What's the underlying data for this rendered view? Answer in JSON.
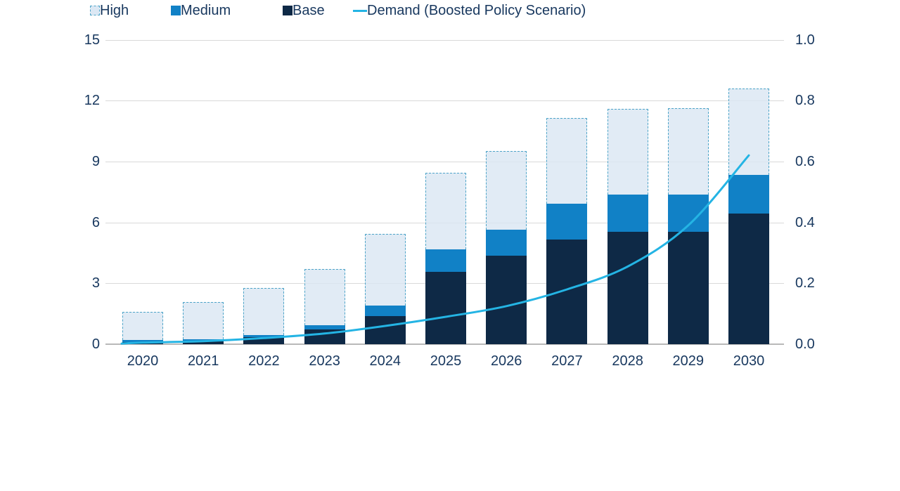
{
  "chart_data": {
    "type": "bar",
    "subtype": "stacked-bars-with-line-combo",
    "title": "",
    "categories": [
      "2020",
      "2021",
      "2022",
      "2023",
      "2024",
      "2025",
      "2026",
      "2027",
      "2028",
      "2029",
      "2030"
    ],
    "series": [
      {
        "name": "Base",
        "type": "bar-stack",
        "axis": "left",
        "color": "#0e2946",
        "values": [
          0.12,
          0.16,
          0.34,
          0.71,
          1.38,
          3.56,
          4.36,
          5.16,
          5.55,
          5.55,
          6.44
        ]
      },
      {
        "name": "Medium",
        "type": "bar-stack",
        "axis": "left",
        "color": "#1181c6",
        "values": [
          0.08,
          0.08,
          0.11,
          0.21,
          0.52,
          1.1,
          1.27,
          1.77,
          1.81,
          1.81,
          1.91
        ]
      },
      {
        "name": "High",
        "type": "bar-stack",
        "axis": "left",
        "color": "#dce8f4",
        "border": "#4da4c8",
        "border_style": "dashed",
        "values": [
          1.38,
          1.85,
          2.31,
          2.77,
          3.54,
          3.79,
          3.9,
          4.22,
          4.24,
          4.27,
          4.25
        ]
      }
    ],
    "line_series": {
      "name": "Demand (Boosted Policy Scenario)",
      "type": "line",
      "axis": "right",
      "color": "#24b4e4",
      "values": [
        0.005,
        0.01,
        0.02,
        0.035,
        0.06,
        0.09,
        0.125,
        0.18,
        0.255,
        0.39,
        0.62
      ]
    },
    "left_axis": {
      "ticks": [
        0,
        3,
        6,
        9,
        12,
        15
      ],
      "range": [
        0,
        15
      ]
    },
    "right_axis": {
      "ticks": [
        "0.0",
        "0.2",
        "0.4",
        "0.6",
        "0.8",
        "1.0"
      ],
      "range": [
        0.0,
        1.0
      ]
    },
    "grid": true,
    "legend_position": "bottom"
  },
  "legend": {
    "high": "High",
    "medium": "Medium",
    "base": "Base",
    "demand": "Demand (Boosted Policy Scenario)"
  },
  "colors": {
    "high_fill": "#dce8f4",
    "high_border": "#4da4c8",
    "medium": "#1181c6",
    "base": "#0e2946",
    "demand_line": "#24b4e4",
    "gridline": "#d9d9d9",
    "axis_line": "#b9b9b9",
    "text": "#17375e",
    "background": "#ffffff"
  }
}
